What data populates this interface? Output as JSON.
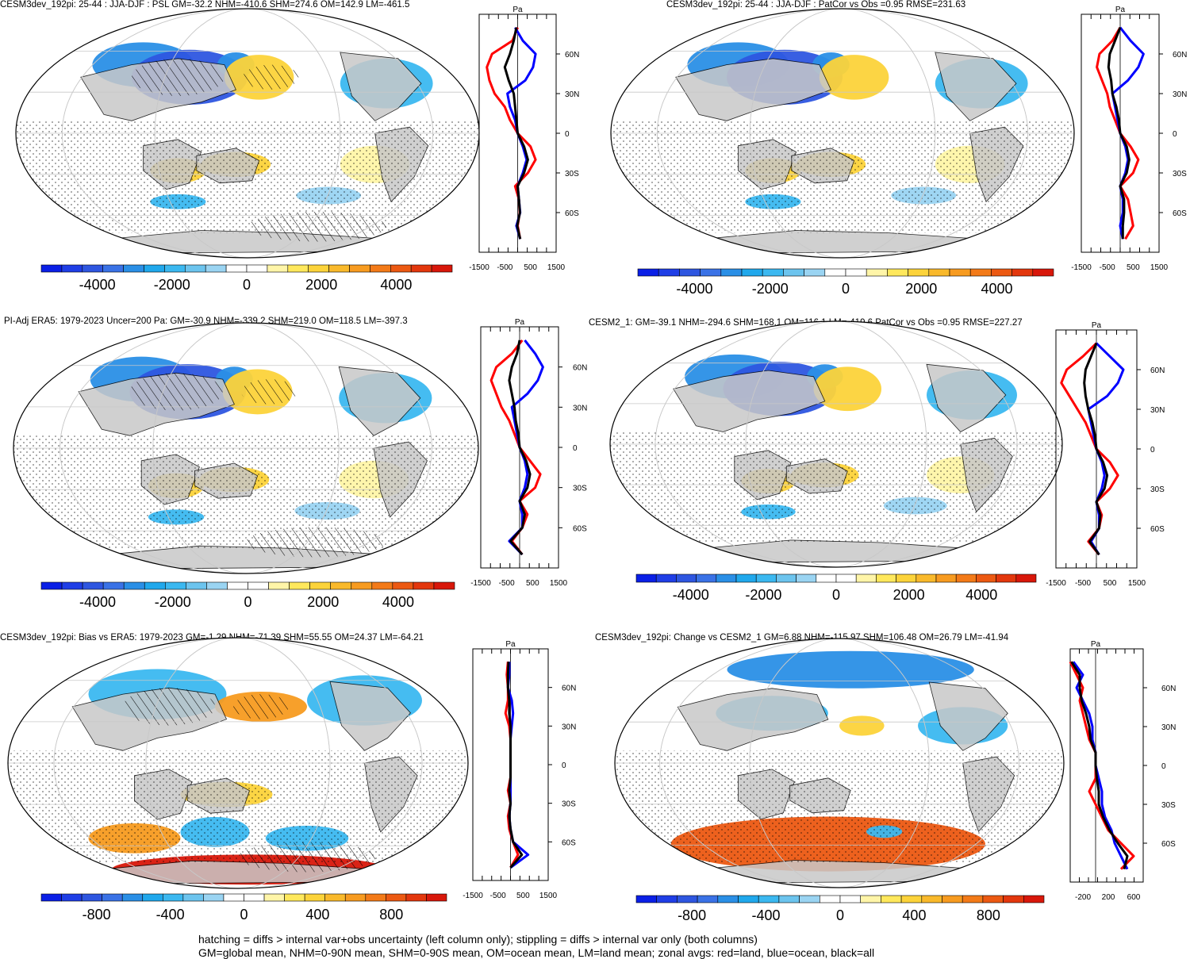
{
  "chart_data": [
    {
      "type": "heatmap",
      "title": "CESM3dev_192pi: 25-44 : JJA-DJF : PSL GM=-32.2 NHM=-410.6 SHM=274.6 OM=142.9 LM=-461.5",
      "colorbar_ticks": [
        "-4000",
        "-2000",
        "0",
        "2000",
        "4000"
      ],
      "colorbar_range": [
        -5500,
        5500
      ],
      "zonal_ylabels": [
        "60N",
        "30N",
        "0",
        "30S",
        "60S"
      ],
      "zonal_xticks": [
        "-1500",
        "-500",
        "500",
        "1500"
      ],
      "zonal_unit": "Pa",
      "zonal_xlim": [
        -1500,
        1500
      ],
      "zonal_lat": [
        80,
        70,
        60,
        50,
        40,
        30,
        20,
        10,
        0,
        -10,
        -20,
        -30,
        -40,
        -50,
        -60,
        -70,
        -80
      ],
      "zonal_series": [
        {
          "color": "#ff0000",
          "values": [
            0,
            -200,
            -1000,
            -1200,
            -1100,
            -900,
            -500,
            -300,
            0,
            500,
            700,
            400,
            -100,
            50,
            80,
            0,
            100
          ]
        },
        {
          "color": "#0000ff",
          "values": [
            -100,
            200,
            700,
            600,
            300,
            -400,
            -300,
            -100,
            0,
            200,
            350,
            200,
            0,
            50,
            100,
            -50,
            100
          ]
        },
        {
          "color": "#000000",
          "values": [
            -50,
            -150,
            -300,
            -500,
            -350,
            -150,
            -100,
            -50,
            0,
            250,
            400,
            250,
            0,
            50,
            90,
            -20,
            100
          ]
        }
      ]
    },
    {
      "type": "heatmap",
      "title": "CESM3dev_192pi: 25-44 : JJA-DJF : PatCor vs Obs =0.95 RMSE=231.63",
      "colorbar_ticks": [
        "-4000",
        "-2000",
        "0",
        "2000",
        "4000"
      ],
      "colorbar_range": [
        -5500,
        5500
      ],
      "zonal_ylabels": [
        "60N",
        "30N",
        "0",
        "30S",
        "60S"
      ],
      "zonal_xticks": [
        "-1500",
        "-500",
        "500",
        "1500"
      ],
      "zonal_unit": "Pa",
      "zonal_xlim": [
        -1500,
        1500
      ],
      "zonal_lat": [
        80,
        70,
        60,
        50,
        40,
        30,
        20,
        10,
        0,
        -10,
        -20,
        -30,
        -40,
        -50,
        -60,
        -70,
        -80
      ],
      "zonal_series": [
        {
          "color": "#ff0000",
          "values": [
            0,
            -300,
            -800,
            -900,
            -700,
            -500,
            -400,
            -200,
            0,
            400,
            700,
            500,
            0,
            300,
            400,
            500,
            200
          ]
        },
        {
          "color": "#0000ff",
          "values": [
            0,
            400,
            900,
            700,
            300,
            -300,
            -200,
            -100,
            0,
            200,
            300,
            200,
            0,
            100,
            100,
            0,
            100
          ]
        },
        {
          "color": "#000000",
          "values": [
            0,
            -200,
            -400,
            -450,
            -350,
            -300,
            -150,
            -50,
            0,
            250,
            350,
            250,
            0,
            150,
            150,
            100,
            100
          ]
        }
      ]
    },
    {
      "type": "heatmap",
      "title": "PI-Adj ERA5: 1979-2023 Uncer=200 Pa: GM=-30.9 NHM=-339.2 SHM=219.0 OM=118.5 LM=-397.3",
      "colorbar_ticks": [
        "-4000",
        "-2000",
        "0",
        "2000",
        "4000"
      ],
      "colorbar_range": [
        -5500,
        5500
      ],
      "zonal_ylabels": [
        "60N",
        "30N",
        "0",
        "30S",
        "60S"
      ],
      "zonal_xticks": [
        "-1500",
        "-500",
        "500",
        "1500"
      ],
      "zonal_unit": "Pa",
      "zonal_xlim": [
        -1500,
        1500
      ],
      "zonal_lat": [
        80,
        70,
        60,
        50,
        40,
        30,
        20,
        10,
        0,
        -10,
        -20,
        -30,
        -40,
        -50,
        -60,
        -70,
        -80
      ],
      "zonal_series": [
        {
          "color": "#ff0000",
          "values": [
            100,
            -300,
            -900,
            -1100,
            -900,
            -700,
            -400,
            -200,
            0,
            400,
            800,
            600,
            0,
            300,
            100,
            -300,
            100
          ]
        },
        {
          "color": "#0000ff",
          "values": [
            200,
            600,
            900,
            700,
            300,
            -300,
            -200,
            -100,
            0,
            200,
            300,
            200,
            0,
            100,
            100,
            -400,
            100
          ]
        },
        {
          "color": "#000000",
          "values": [
            0,
            -100,
            -300,
            -400,
            -300,
            -200,
            -150,
            -50,
            0,
            250,
            400,
            300,
            0,
            200,
            100,
            -350,
            100
          ]
        }
      ]
    },
    {
      "type": "heatmap",
      "title": "CESM2_1: GM=-39.1 NHM=-294.6 SHM=168.1 OM=116.1 LM=-419.6 PatCor vs Obs =0.95 RMSE=227.27",
      "colorbar_ticks": [
        "-4000",
        "-2000",
        "0",
        "2000",
        "4000"
      ],
      "colorbar_range": [
        -5500,
        5500
      ],
      "zonal_ylabels": [
        "60N",
        "30N",
        "0",
        "30S",
        "60S"
      ],
      "zonal_xticks": [
        "-1500",
        "-500",
        "500",
        "1500"
      ],
      "zonal_unit": "Pa",
      "zonal_xlim": [
        -1500,
        1500
      ],
      "zonal_lat": [
        80,
        70,
        60,
        50,
        40,
        30,
        20,
        10,
        0,
        -10,
        -20,
        -30,
        -40,
        -50,
        -60,
        -70,
        -80
      ],
      "zonal_series": [
        {
          "color": "#ff0000",
          "values": [
            0,
            -500,
            -1100,
            -1300,
            -1000,
            -700,
            -400,
            -200,
            0,
            500,
            800,
            500,
            0,
            200,
            100,
            -300,
            100
          ]
        },
        {
          "color": "#0000ff",
          "values": [
            0,
            500,
            1000,
            800,
            400,
            -300,
            -200,
            -100,
            0,
            200,
            300,
            200,
            0,
            100,
            100,
            -200,
            100
          ]
        },
        {
          "color": "#000000",
          "values": [
            0,
            -200,
            -400,
            -450,
            -400,
            -300,
            -150,
            -50,
            0,
            250,
            400,
            300,
            0,
            150,
            100,
            -250,
            100
          ]
        }
      ]
    },
    {
      "type": "heatmap",
      "title": "CESM3dev_192pi: Bias vs ERA5: 1979-2023 GM=-1.29 NHM=-71.39 SHM=55.55 OM=24.37 LM=-64.21",
      "colorbar_ticks": [
        "-800",
        "-400",
        "0",
        "400",
        "800"
      ],
      "colorbar_range": [
        -1100,
        1100
      ],
      "zonal_ylabels": [
        "60N",
        "30N",
        "0",
        "30S",
        "60S"
      ],
      "zonal_xticks": [
        "-1500",
        "-500",
        "500",
        "1500"
      ],
      "zonal_unit": "Pa",
      "zonal_xlim": [
        -1500,
        1500
      ],
      "zonal_lat": [
        80,
        70,
        60,
        50,
        40,
        30,
        20,
        10,
        0,
        -10,
        -20,
        -30,
        -40,
        -50,
        -60,
        -70,
        -80
      ],
      "zonal_series": [
        {
          "color": "#ff0000",
          "values": [
            -100,
            -150,
            -100,
            -100,
            -200,
            -50,
            0,
            0,
            0,
            0,
            -100,
            0,
            -100,
            -50,
            100,
            300,
            0
          ]
        },
        {
          "color": "#0000ff",
          "values": [
            -50,
            -50,
            -100,
            50,
            100,
            50,
            0,
            0,
            0,
            0,
            0,
            0,
            -50,
            0,
            100,
            700,
            0
          ]
        },
        {
          "color": "#000000",
          "values": [
            -80,
            -100,
            -100,
            -50,
            -50,
            0,
            0,
            0,
            0,
            0,
            -50,
            0,
            -50,
            0,
            100,
            450,
            0
          ]
        }
      ]
    },
    {
      "type": "heatmap",
      "title": "CESM3dev_192pi: Change vs CESM2_1 GM=6.88 NHM=-115.97 SHM=106.48 OM=26.79 LM=-41.94",
      "colorbar_ticks": [
        "-800",
        "-400",
        "0",
        "400",
        "800"
      ],
      "colorbar_range": [
        -1100,
        1100
      ],
      "zonal_ylabels": [
        "60N",
        "30N",
        "0",
        "30S",
        "60S"
      ],
      "zonal_xticks": [
        "-200",
        "200",
        "600"
      ],
      "zonal_unit": "Pa",
      "zonal_xlim": [
        -400,
        750
      ],
      "zonal_lat": [
        80,
        70,
        60,
        50,
        40,
        30,
        20,
        10,
        0,
        -10,
        -20,
        -30,
        -40,
        -50,
        -60,
        -70,
        -80
      ],
      "zonal_series": [
        {
          "color": "#ff0000",
          "values": [
            -400,
            -300,
            -200,
            -250,
            -200,
            -150,
            -100,
            0,
            0,
            0,
            -100,
            0,
            100,
            200,
            400,
            600,
            400
          ]
        },
        {
          "color": "#0000ff",
          "values": [
            -350,
            -200,
            -300,
            -200,
            -100,
            -50,
            -50,
            0,
            0,
            50,
            100,
            100,
            150,
            250,
            300,
            400,
            500
          ]
        },
        {
          "color": "#000000",
          "values": [
            -380,
            -250,
            -250,
            -220,
            -150,
            -100,
            -80,
            0,
            0,
            20,
            50,
            50,
            120,
            220,
            350,
            500,
            450
          ]
        }
      ]
    }
  ],
  "caption": [
    "hatching = diffs > internal var+obs uncertainty (left column only); stippling = diffs > internal var only (both columns)",
    "GM=global mean, NHM=0-90N mean, SHM=0-90S mean, OM=ocean mean, LM=land mean; zonal avgs: red=land, blue=ocean, black=all"
  ],
  "colors": {
    "land": "#c8c8c8",
    "ocean_neutral": "#ffffff",
    "negative_palette": [
      "#0a1fe6",
      "#1f3ee6",
      "#2e56e0",
      "#3a72e6",
      "#2a8fe6",
      "#20a8ec",
      "#3bb8f0",
      "#6cc4ee",
      "#9ad4f2"
    ],
    "positive_palette": [
      "#fff5a8",
      "#ffe85c",
      "#fcd33a",
      "#f9b92b",
      "#f79b20",
      "#f37a18",
      "#ec5912",
      "#e3370d",
      "#d8170a"
    ]
  }
}
